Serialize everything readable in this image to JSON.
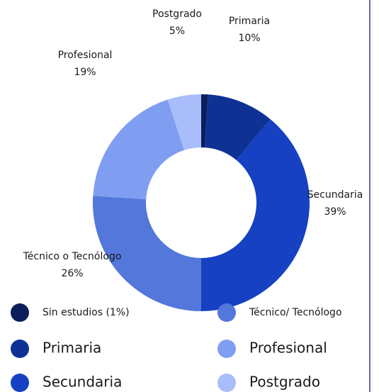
{
  "chart_data": {
    "type": "donut",
    "categories": [
      "Sin estudios (1%)",
      "Primaria",
      "Secundaria",
      "Técnico/ Tecnólogo",
      "Profesional",
      "Postgrado"
    ],
    "slice_labels": [
      null,
      "Primaria",
      "Secundaria",
      "Técnico o Tecnólogo",
      "Profesional",
      "Postgrado"
    ],
    "values": [
      1,
      10,
      39,
      26,
      19,
      5
    ],
    "value_labels": [
      null,
      "10%",
      "39%",
      "26%",
      "19%",
      "5%"
    ],
    "colors": [
      "#0b1d5a",
      "#0e3194",
      "#1541c2",
      "#5377da",
      "#7f9ef1",
      "#a9bdfb"
    ]
  }
}
